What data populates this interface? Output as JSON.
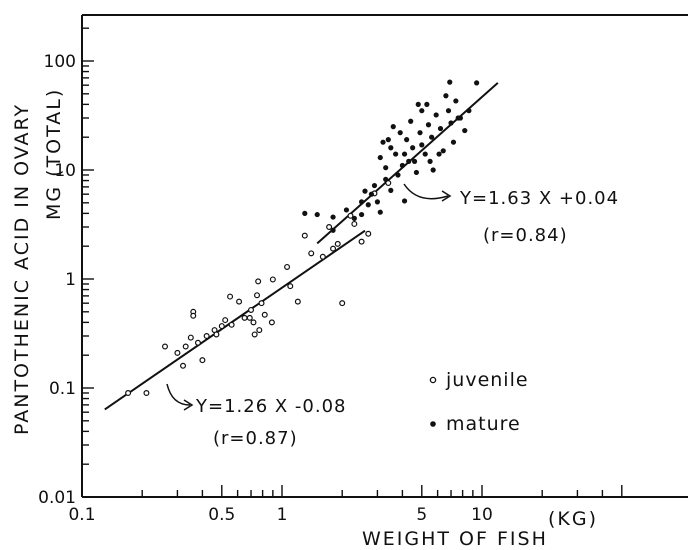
{
  "chart_data": {
    "type": "scatter",
    "title": "",
    "xlabel": "WEIGHT OF FISH",
    "xunit": "(KG)",
    "ylabel": "PANTOTHENIC ACID IN OVARY",
    "yunit": "MG (TOTAL)",
    "xscale": "log",
    "yscale": "log",
    "xlim": [
      0.1,
      50
    ],
    "ylim": [
      0.01,
      200
    ],
    "grid": false,
    "legend_position": "lower-right",
    "x_ticks": [
      {
        "value": 0.1,
        "label": "0.1"
      },
      {
        "value": 0.5,
        "label": "0.5"
      },
      {
        "value": 1,
        "label": "1"
      },
      {
        "value": 5,
        "label": "5"
      },
      {
        "value": 10,
        "label": "10"
      }
    ],
    "y_ticks": [
      {
        "value": 0.01,
        "label": "0.01"
      },
      {
        "value": 0.1,
        "label": "0.1"
      },
      {
        "value": 1,
        "label": "1"
      },
      {
        "value": 10,
        "label": "10"
      },
      {
        "value": 100,
        "label": "100"
      }
    ],
    "series": [
      {
        "name": "juvenile",
        "marker": "open-circle",
        "points": [
          [
            0.17,
            0.09
          ],
          [
            0.21,
            0.09
          ],
          [
            0.26,
            0.24
          ],
          [
            0.3,
            0.21
          ],
          [
            0.32,
            0.16
          ],
          [
            0.33,
            0.24
          ],
          [
            0.35,
            0.29
          ],
          [
            0.36,
            0.5
          ],
          [
            0.36,
            0.46
          ],
          [
            0.38,
            0.26
          ],
          [
            0.4,
            0.18
          ],
          [
            0.42,
            0.3
          ],
          [
            0.46,
            0.34
          ],
          [
            0.47,
            0.31
          ],
          [
            0.5,
            0.37
          ],
          [
            0.52,
            0.42
          ],
          [
            0.55,
            0.69
          ],
          [
            0.56,
            0.38
          ],
          [
            0.61,
            0.62
          ],
          [
            0.65,
            0.44
          ],
          [
            0.69,
            0.44
          ],
          [
            0.7,
            0.52
          ],
          [
            0.72,
            0.4
          ],
          [
            0.73,
            0.31
          ],
          [
            0.75,
            0.71
          ],
          [
            0.76,
            0.95
          ],
          [
            0.77,
            0.34
          ],
          [
            0.79,
            0.6
          ],
          [
            0.82,
            0.47
          ],
          [
            0.89,
            0.4
          ],
          [
            0.9,
            0.99
          ],
          [
            1.06,
            1.29
          ],
          [
            1.1,
            0.86
          ],
          [
            1.2,
            0.62
          ],
          [
            1.3,
            2.5
          ],
          [
            1.4,
            1.72
          ],
          [
            1.6,
            1.6
          ],
          [
            1.72,
            3.0
          ],
          [
            1.8,
            1.9
          ],
          [
            1.9,
            2.1
          ],
          [
            2.0,
            0.6
          ],
          [
            2.2,
            3.8
          ],
          [
            2.3,
            3.2
          ],
          [
            2.5,
            2.2
          ],
          [
            2.7,
            2.6
          ],
          [
            2.9,
            6.1
          ],
          [
            3.4,
            7.6
          ]
        ]
      },
      {
        "name": "mature",
        "marker": "filled-circle",
        "points": [
          [
            1.3,
            4.0
          ],
          [
            1.5,
            3.9
          ],
          [
            1.8,
            3.7
          ],
          [
            1.8,
            2.8
          ],
          [
            2.1,
            4.3
          ],
          [
            2.3,
            3.6
          ],
          [
            2.5,
            3.9
          ],
          [
            2.5,
            5.1
          ],
          [
            2.6,
            6.4
          ],
          [
            2.7,
            4.8
          ],
          [
            2.8,
            6.0
          ],
          [
            2.9,
            7.2
          ],
          [
            3.0,
            5.1
          ],
          [
            3.1,
            4.1
          ],
          [
            3.1,
            13.0
          ],
          [
            3.2,
            18.0
          ],
          [
            3.3,
            8.2
          ],
          [
            3.3,
            10.5
          ],
          [
            3.4,
            19.0
          ],
          [
            3.5,
            16.0
          ],
          [
            3.5,
            6.5
          ],
          [
            3.6,
            25.0
          ],
          [
            3.7,
            14.0
          ],
          [
            3.8,
            9.0
          ],
          [
            3.9,
            22.0
          ],
          [
            4.0,
            11.0
          ],
          [
            4.1,
            14.0
          ],
          [
            4.1,
            5.2
          ],
          [
            4.2,
            19.0
          ],
          [
            4.3,
            12.0
          ],
          [
            4.4,
            28.0
          ],
          [
            4.5,
            16.0
          ],
          [
            4.6,
            12.0
          ],
          [
            4.7,
            9.5
          ],
          [
            4.8,
            40.0
          ],
          [
            4.9,
            22.0
          ],
          [
            5.0,
            17.0
          ],
          [
            5.0,
            35.0
          ],
          [
            5.2,
            14.0
          ],
          [
            5.3,
            40.0
          ],
          [
            5.4,
            26.0
          ],
          [
            5.5,
            12.0
          ],
          [
            5.6,
            20.0
          ],
          [
            5.7,
            10.0
          ],
          [
            5.9,
            32.0
          ],
          [
            6.1,
            14.0
          ],
          [
            6.2,
            24.0
          ],
          [
            6.4,
            15.0
          ],
          [
            6.6,
            48.0
          ],
          [
            6.8,
            35.0
          ],
          [
            6.9,
            64.0
          ],
          [
            7.0,
            27.0
          ],
          [
            7.2,
            18.0
          ],
          [
            7.4,
            43.0
          ],
          [
            7.6,
            30.0
          ],
          [
            7.8,
            30.0
          ],
          [
            8.2,
            23.0
          ],
          [
            8.6,
            35.0
          ],
          [
            9.4,
            63.0
          ]
        ]
      }
    ],
    "regression_lines": [
      {
        "name": "juvenile",
        "x_range": [
          0.13,
          2.6
        ],
        "equation": "Y=1.26 X -0.08",
        "r": "(r=0.87)"
      },
      {
        "name": "mature",
        "x_range": [
          1.5,
          12.0
        ],
        "equation": "Y=1.63 X +0.04",
        "r": "(r=0.84)"
      }
    ],
    "legend": [
      {
        "label": "juvenile",
        "marker": "open-circle"
      },
      {
        "label": "mature",
        "marker": "filled-circle"
      }
    ]
  }
}
